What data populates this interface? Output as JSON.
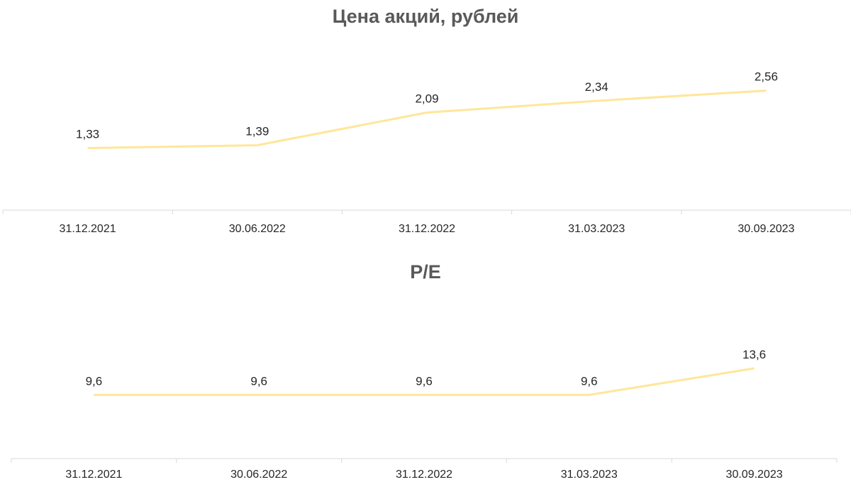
{
  "chart_data": [
    {
      "type": "line",
      "title": "Цена акций, рублей",
      "categories": [
        "31.12.2021",
        "30.06.2022",
        "31.12.2022",
        "31.03.2023",
        "30.09.2023"
      ],
      "series": [
        {
          "values": [
            1.33,
            1.39,
            2.09,
            2.34,
            2.56
          ],
          "labels": [
            "1,33",
            "1,39",
            "2,09",
            "2,34",
            "2,56"
          ],
          "color": "#FFE699"
        }
      ],
      "ylim": [
        0,
        4.5
      ],
      "grid": false,
      "legend": "none",
      "axis_color": "#D9D9D9"
    },
    {
      "type": "line",
      "title": "P/E",
      "categories": [
        "31.12.2021",
        "30.06.2022",
        "31.12.2022",
        "31.03.2023",
        "30.09.2023"
      ],
      "series": [
        {
          "values": [
            9.6,
            9.6,
            9.6,
            9.6,
            13.6
          ],
          "labels": [
            "9,6",
            "9,6",
            "9,6",
            "9,6",
            "13,6"
          ],
          "color": "#FFE699"
        }
      ],
      "ylim": [
        0,
        30.6
      ],
      "grid": false,
      "legend": "none",
      "axis_color": "#D9D9D9"
    }
  ]
}
